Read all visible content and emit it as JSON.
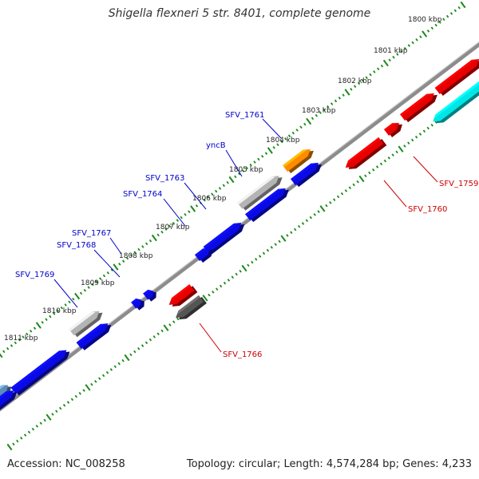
{
  "title": "Shigella flexneri 5 str. 8401, complete genome",
  "accession": "Accession: NC_008258",
  "summary": "Topology: circular; Length: 4,574,284 bp; Genes: 4,233",
  "colors": {
    "backbone": "#8c8c8c",
    "tick": "#1a8a1a",
    "forward_label": "#0000cc",
    "reverse_label": "#cc0000",
    "blue": "#0a0ae6",
    "grey": "#b4b4b4",
    "orange": "#ff8c00",
    "red": "#e60000",
    "dark_grey": "#555555",
    "cyan": "#00e6e6",
    "steel": "#5f8cb4"
  },
  "scale_labels": [
    "1800 kbp",
    "1801 kbp",
    "1802 kbp",
    "1803 kbp",
    "1804 kbp",
    "1805 kbp",
    "1806 kbp",
    "1807 kbp",
    "1808 kbp",
    "1809 kbp",
    "1810 kbp",
    "1811 kbp"
  ],
  "forward_gene_labels": [
    "SFV_1761",
    "yncB",
    "SFV_1763",
    "SFV_1764",
    "SFV_1767",
    "SFV_1768",
    "SFV_1769"
  ],
  "reverse_gene_labels": [
    "SFV_1759",
    "SFV_1760",
    "SFV_1766"
  ]
}
